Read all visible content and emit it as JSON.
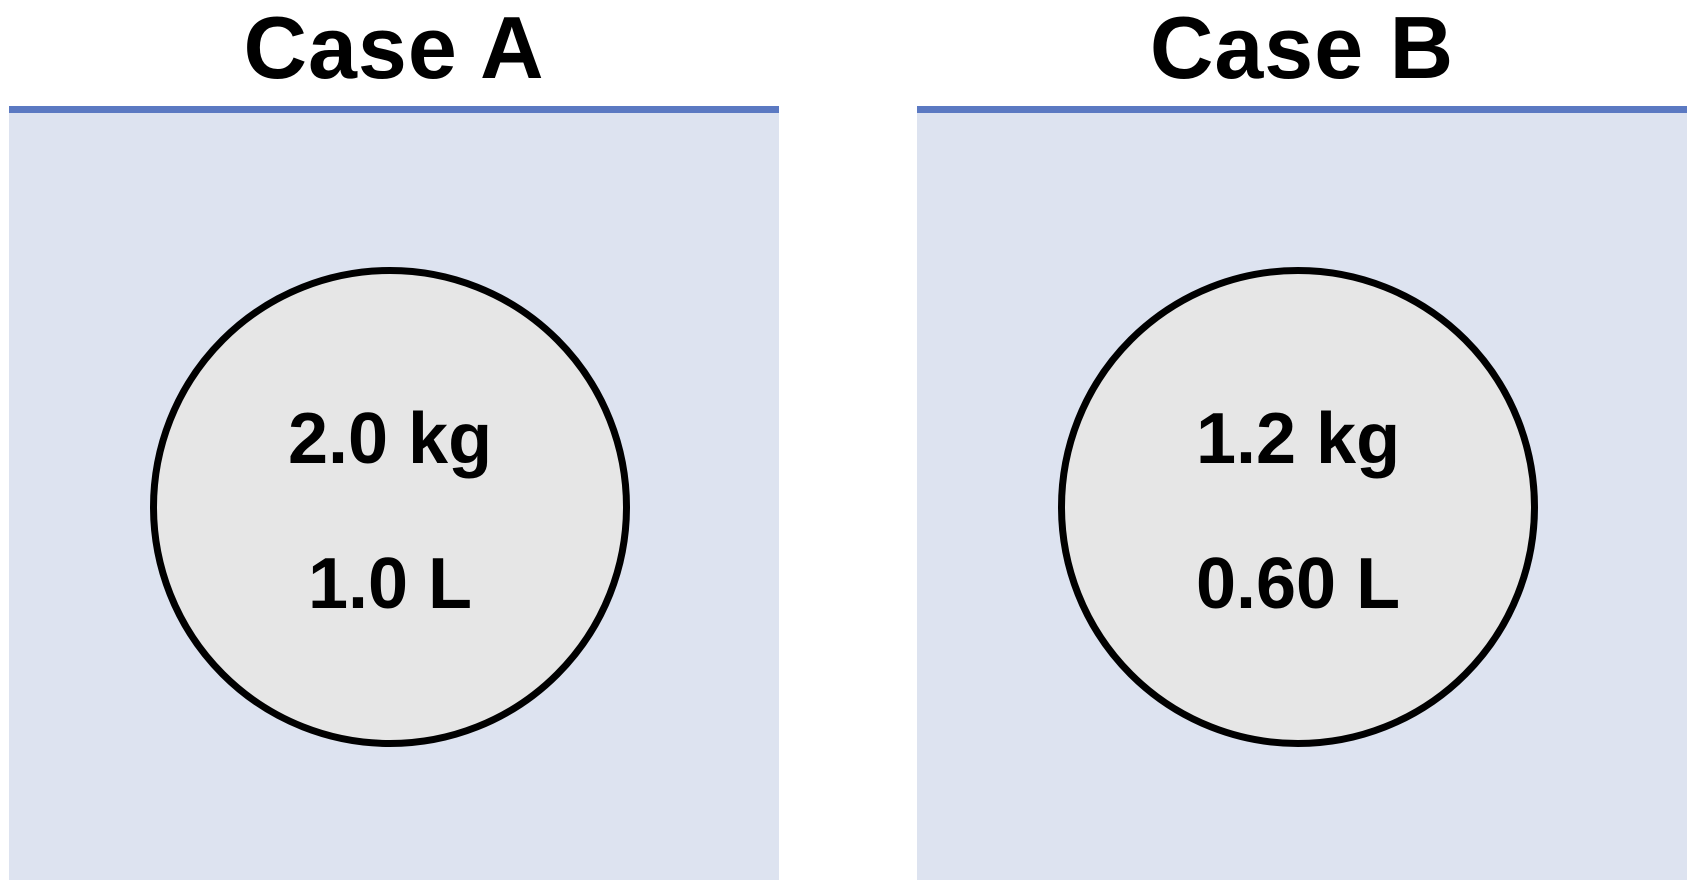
{
  "cases": [
    {
      "title": "Case A",
      "mass": "2.0 kg",
      "volume": "1.0 L"
    },
    {
      "title": "Case B",
      "mass": "1.2 kg",
      "volume": "0.60 L"
    }
  ],
  "colors": {
    "fluid_surface": "#5b79c2",
    "fluid": "#dde3f0",
    "object_fill": "#e6e6e6",
    "object_outline": "#000000"
  }
}
